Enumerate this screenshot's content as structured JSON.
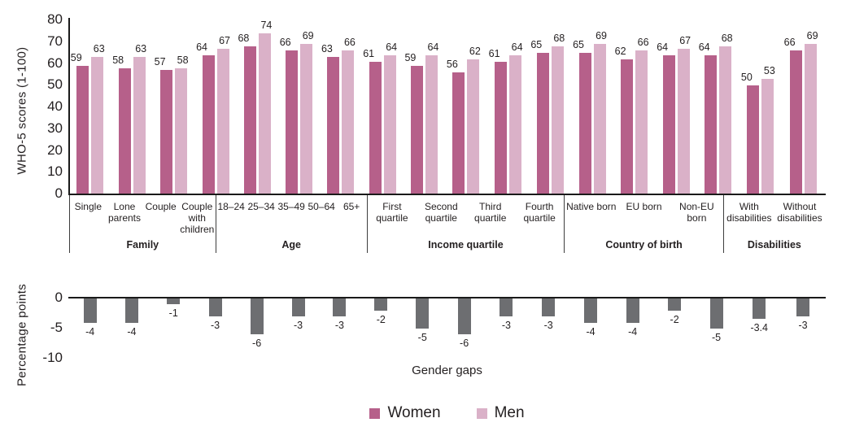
{
  "colors": {
    "women": "#b6608a",
    "men": "#dab1c8",
    "gap": "#6d6e71",
    "axis": "#1a1a1a",
    "separator": "#3d3d3d",
    "text": "#231f20"
  },
  "legend": {
    "women": "Women",
    "men": "Men"
  },
  "chart_data": [
    {
      "type": "bar",
      "title": "",
      "ylabel": "WHO-5 scores (1-100)",
      "xlabel": "",
      "ylim": [
        0,
        80
      ],
      "yticks": [
        80,
        70,
        60,
        50,
        40,
        30,
        20,
        10,
        0
      ],
      "grid": false,
      "legend_position": "bottom",
      "series_names": [
        "Women",
        "Men"
      ],
      "group_flex": [
        207,
        256,
        210,
        156,
        111
      ],
      "groups": [
        {
          "label": "Family",
          "items": [
            {
              "category": "Single",
              "women": 59,
              "men": 63
            },
            {
              "category": "Lone parents",
              "display": "Lone\nparents",
              "women": 58,
              "men": 63
            },
            {
              "category": "Couple",
              "women": 57,
              "men": 58
            },
            {
              "category": "Couple with children",
              "display": "Couple\nwith\nchildren",
              "women": 64,
              "men": 67
            }
          ]
        },
        {
          "label": "Age",
          "items": [
            {
              "category": "18–24",
              "women": 68,
              "men": 74
            },
            {
              "category": "25–34",
              "women": 66,
              "men": 69
            },
            {
              "category": "35–49",
              "women": 63,
              "men": 66
            },
            {
              "category": "50–64",
              "women": 61,
              "men": 64
            },
            {
              "category": "65+",
              "women": 59,
              "men": 64
            }
          ]
        },
        {
          "label": "Income quartile",
          "items": [
            {
              "category": "First quartile",
              "women": 56,
              "men": 62
            },
            {
              "category": "Second quartile",
              "display": "Second\nquartile",
              "women": 61,
              "men": 64
            },
            {
              "category": "Third quartile",
              "women": 65,
              "men": 68
            },
            {
              "category": "Fourth quartile",
              "display": "Fourth\nquartile",
              "women": 65,
              "men": 69
            }
          ]
        },
        {
          "label": "Country of birth",
          "items": [
            {
              "category": "Native born",
              "women": 62,
              "men": 66
            },
            {
              "category": "EU born",
              "women": 64,
              "men": 67
            },
            {
              "category": "Non-EU born",
              "women": 64,
              "men": 68
            }
          ]
        },
        {
          "label": "Disabilities",
          "items": [
            {
              "category": "With disabilities",
              "display": "With\ndisabilities",
              "women": 50,
              "men": 53
            },
            {
              "category": "Without disabilities",
              "display": "Without\ndisabilities",
              "women": 66,
              "men": 69
            }
          ]
        }
      ]
    },
    {
      "type": "bar",
      "title": "",
      "ylabel": "Percentage points",
      "xlabel": "Gender gaps",
      "ylim": [
        -10,
        0
      ],
      "yticks": [
        0,
        -5,
        -10
      ],
      "grid": false,
      "categories": [
        "Single",
        "Lone parents",
        "Couple",
        "Couple with children",
        "18–24",
        "25–34",
        "35–49",
        "50–64",
        "65+",
        "First quartile",
        "Second quartile",
        "Third quartile",
        "Fourth quartile",
        "Native born",
        "EU born",
        "Non-EU born",
        "With disabilities",
        "Without disabilities"
      ],
      "values": [
        -4,
        -4,
        -1,
        -3,
        -6,
        -3,
        -3,
        -2,
        -5,
        -6,
        -3,
        -3,
        -4,
        -4,
        -2,
        -5,
        -3.4,
        -3
      ],
      "value_labels": [
        "-4",
        "-4",
        "-1",
        "-3",
        "-6",
        "-3",
        "-3",
        "-2",
        "-5",
        "-6",
        "-3",
        "-3",
        "-4",
        "-4",
        "-2",
        "-5",
        "-3.4",
        "-3"
      ]
    }
  ]
}
